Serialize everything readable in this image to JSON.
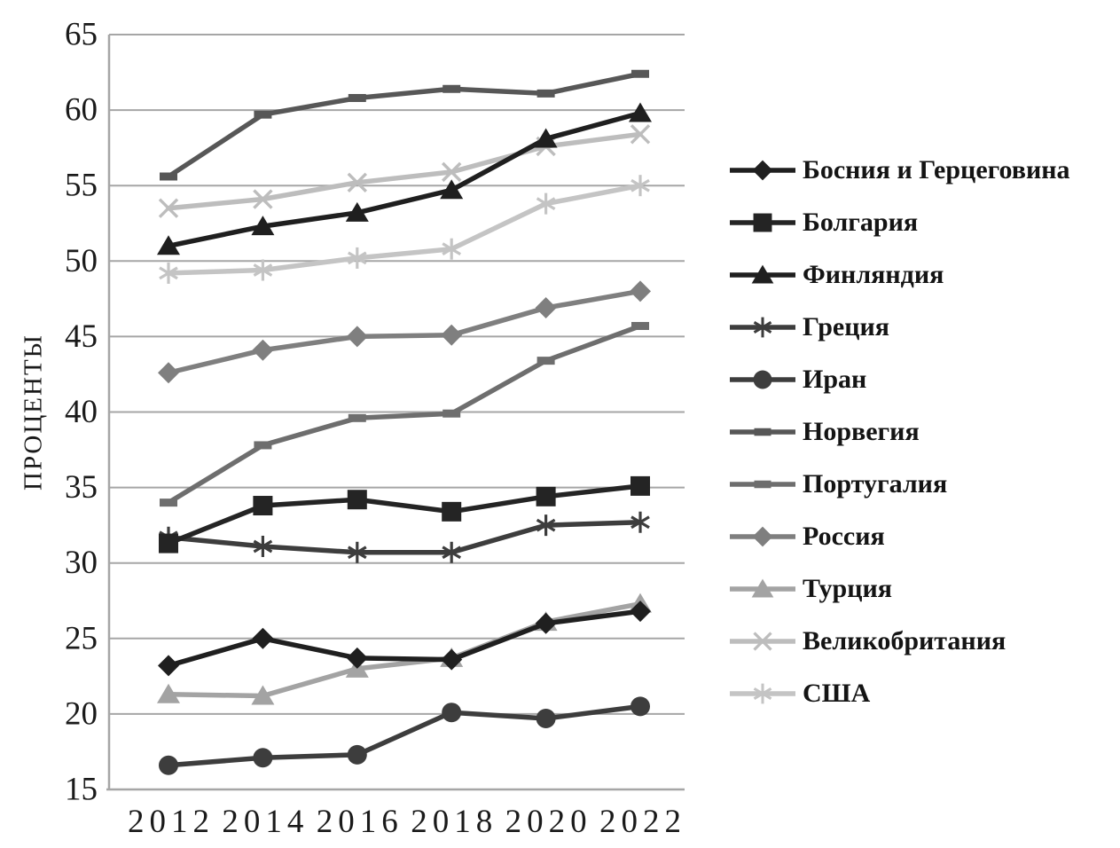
{
  "chart_data": {
    "type": "line",
    "title": "",
    "ylabel": "ПРОЦЕНТЫ",
    "xlabel": "",
    "x_categories": [
      "2012",
      "2014",
      "2016",
      "2018",
      "2020",
      "2022"
    ],
    "ylim": [
      15,
      65
    ],
    "ytick_step": 5,
    "ytick_labels": [
      "15",
      "20",
      "25",
      "30",
      "35",
      "40",
      "45",
      "50",
      "55",
      "60",
      "65"
    ],
    "grid": "horizontal",
    "legend_position": "right",
    "series": [
      {
        "name": "Босния и Герцеговина",
        "marker": "diamond",
        "color": "#1f1f1f",
        "values": [
          23.2,
          25.0,
          23.7,
          23.6,
          26.0,
          26.8
        ]
      },
      {
        "name": "Болгария",
        "marker": "square",
        "color": "#242424",
        "values": [
          31.3,
          33.8,
          34.2,
          33.4,
          34.4,
          35.1
        ]
      },
      {
        "name": "Финляндия",
        "marker": "triangle",
        "color": "#1f1f1f",
        "values": [
          51.0,
          52.3,
          53.2,
          54.7,
          58.1,
          59.8
        ]
      },
      {
        "name": "Греция",
        "marker": "asterisk6",
        "color": "#3d3d3d",
        "values": [
          31.7,
          31.1,
          30.7,
          30.7,
          32.5,
          32.7
        ]
      },
      {
        "name": "Иран",
        "marker": "circle",
        "color": "#3d3d3d",
        "values": [
          16.6,
          17.1,
          17.3,
          20.1,
          19.7,
          20.5
        ]
      },
      {
        "name": "Норвегия",
        "marker": "dash",
        "color": "#575757",
        "values": [
          55.6,
          59.7,
          60.8,
          61.4,
          61.1,
          62.4
        ]
      },
      {
        "name": "Португалия",
        "marker": "dash",
        "color": "#6e6e6e",
        "values": [
          34.0,
          37.8,
          39.6,
          39.9,
          43.4,
          45.7
        ]
      },
      {
        "name": "Россия",
        "marker": "diamond",
        "color": "#7f7f7f",
        "values": [
          42.6,
          44.1,
          45.0,
          45.1,
          46.9,
          48.0
        ]
      },
      {
        "name": "Турция",
        "marker": "triangle",
        "color": "#a3a3a3",
        "values": [
          21.3,
          21.2,
          23.0,
          23.7,
          26.1,
          27.3
        ]
      },
      {
        "name": "Великобритания",
        "marker": "x",
        "color": "#bdbdbd",
        "values": [
          53.5,
          54.1,
          55.2,
          55.9,
          57.6,
          58.4
        ]
      },
      {
        "name": "США",
        "marker": "asterisk6",
        "color": "#c4c4c4",
        "values": [
          49.2,
          49.4,
          50.2,
          50.8,
          53.8,
          55.0
        ]
      }
    ],
    "axis_color": "#a6a6a6",
    "text_color": "#1a1a1a"
  }
}
